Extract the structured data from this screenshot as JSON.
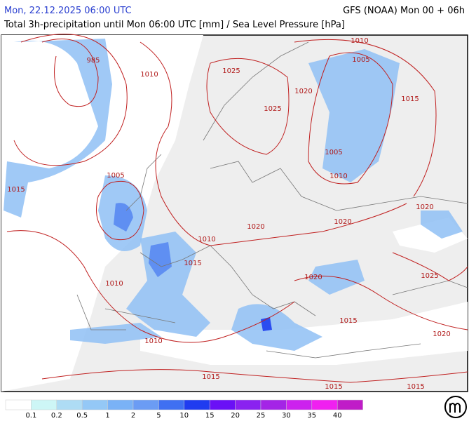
{
  "header": {
    "title": "Mon, 22.12.2025 06:00 UTC",
    "model": "GFS (NOAA) Mon 00 + 06h",
    "subtitle": "Total 3h-precipitation until Mon 06:00 UTC [mm] / Sea Level Pressure [hPa]"
  },
  "isobars": [
    "985",
    "1010",
    "1025",
    "1010",
    "1005",
    "1020",
    "1025",
    "1015",
    "1005",
    "1010",
    "1005",
    "1015",
    "1020",
    "1020",
    "1020",
    "1010",
    "1015",
    "1020",
    "1025",
    "1010",
    "1015",
    "1020",
    "1010",
    "1015",
    "1015",
    "1015"
  ],
  "legend": {
    "colors": [
      "#ffffff",
      "#cdf6f6",
      "#aedcf4",
      "#94c8f6",
      "#7ab2f6",
      "#6b9cf4",
      "#3f70f2",
      "#1f3cf0",
      "#6a10f6",
      "#8a22f0",
      "#a424e6",
      "#cc22ee",
      "#f020f0",
      "#c01cc8"
    ],
    "labels": [
      "0.1",
      "0.2",
      "0.5",
      "1",
      "2",
      "5",
      "10",
      "15",
      "20",
      "25",
      "30",
      "35",
      "40"
    ]
  }
}
